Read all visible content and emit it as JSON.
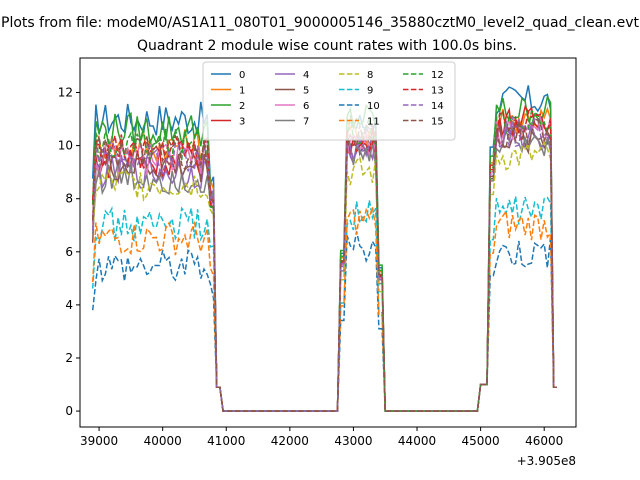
{
  "figure": {
    "suptitle": "Plots from file: modeM0/AS1A11_080T01_9000005146_35880cztM0_level2_quad_clean.evt"
  },
  "chart_data": {
    "type": "line",
    "title": "Quadrant 2 module wise count rates with 100.0s bins.",
    "xlabel": "",
    "ylabel": "",
    "x_offset_label": "+3.905e8",
    "xlim": [
      38700,
      46500
    ],
    "ylim": [
      -0.6,
      13.3
    ],
    "x_ticks": [
      39000,
      40000,
      41000,
      42000,
      43000,
      44000,
      45000,
      46000
    ],
    "y_ticks": [
      0,
      2,
      4,
      6,
      8,
      10,
      12
    ],
    "grid": false,
    "legend": {
      "placement": "upper-center",
      "columns": 4
    },
    "series": [
      {
        "name": "0",
        "color": "#1f77b4",
        "dash": "solid",
        "active": [
          39000,
          40700
        ],
        "level": 11.0,
        "tail": 8.5,
        "level2": 10.8,
        "level3": 11.7
      },
      {
        "name": "1",
        "color": "#ff7f0e",
        "dash": "solid",
        "active": [
          39000,
          40700
        ],
        "level": 10.0,
        "tail": 8.5,
        "level2": 10.5,
        "level3": 11.0
      },
      {
        "name": "2",
        "color": "#2ca02c",
        "dash": "solid",
        "active": [
          39000,
          40700
        ],
        "level": 10.6,
        "tail": 8.0,
        "level2": 11.0,
        "level3": 11.3
      },
      {
        "name": "3",
        "color": "#d62728",
        "dash": "solid",
        "active": [
          39000,
          40700
        ],
        "level": 9.4,
        "tail": 8.0,
        "level2": 10.2,
        "level3": 10.9
      },
      {
        "name": "4",
        "color": "#9467bd",
        "dash": "solid",
        "active": [
          39000,
          40700
        ],
        "level": 9.0,
        "tail": 8.0,
        "level2": 9.9,
        "level3": 10.4
      },
      {
        "name": "5",
        "color": "#8c564b",
        "dash": "solid",
        "active": [
          39000,
          40700
        ],
        "level": 9.2,
        "tail": 8.0,
        "level2": 10.1,
        "level3": 10.3
      },
      {
        "name": "6",
        "color": "#e377c2",
        "dash": "solid",
        "active": [
          39000,
          40700
        ],
        "level": 9.5,
        "tail": 8.0,
        "level2": 10.0,
        "level3": 10.6
      },
      {
        "name": "7",
        "color": "#7f7f7f",
        "dash": "solid",
        "active": [
          39000,
          40700
        ],
        "level": 8.8,
        "tail": 8.0,
        "level2": 9.6,
        "level3": 10.2
      },
      {
        "name": "8",
        "color": "#bcbd22",
        "dash": "dashed",
        "active": [
          39000,
          40700
        ],
        "level": 8.6,
        "tail": 7.5,
        "level2": 9.0,
        "level3": 9.6
      },
      {
        "name": "9",
        "color": "#17becf",
        "dash": "dashed",
        "active": [
          39000,
          40700
        ],
        "level": 7.0,
        "tail": 6.0,
        "level2": 7.4,
        "level3": 7.6
      },
      {
        "name": "10",
        "color": "#1f77b4",
        "dash": "dashed",
        "active": [
          39000,
          40700
        ],
        "level": 5.5,
        "tail": 4.5,
        "level2": 6.2,
        "level3": 6.0
      },
      {
        "name": "11",
        "color": "#ff7f0e",
        "dash": "dashed",
        "active": [
          39000,
          40700
        ],
        "level": 6.5,
        "tail": 5.0,
        "level2": 7.2,
        "level3": 7.0
      },
      {
        "name": "12",
        "color": "#2ca02c",
        "dash": "dashed",
        "active": [
          39000,
          40700
        ],
        "level": 10.0,
        "tail": 8.0,
        "level2": 10.6,
        "level3": 10.8
      },
      {
        "name": "13",
        "color": "#d62728",
        "dash": "dashed",
        "active": [
          39000,
          40700
        ],
        "level": 9.8,
        "tail": 8.0,
        "level2": 10.2,
        "level3": 10.7
      },
      {
        "name": "14",
        "color": "#9467bd",
        "dash": "dashed",
        "active": [
          39000,
          40700
        ],
        "level": 9.6,
        "tail": 8.0,
        "level2": 10.1,
        "level3": 10.5
      },
      {
        "name": "15",
        "color": "#8c564b",
        "dash": "dashed",
        "active": [
          39000,
          40700
        ],
        "level": 9.7,
        "tail": 8.0,
        "level2": 10.3,
        "level3": 10.4
      }
    ]
  }
}
